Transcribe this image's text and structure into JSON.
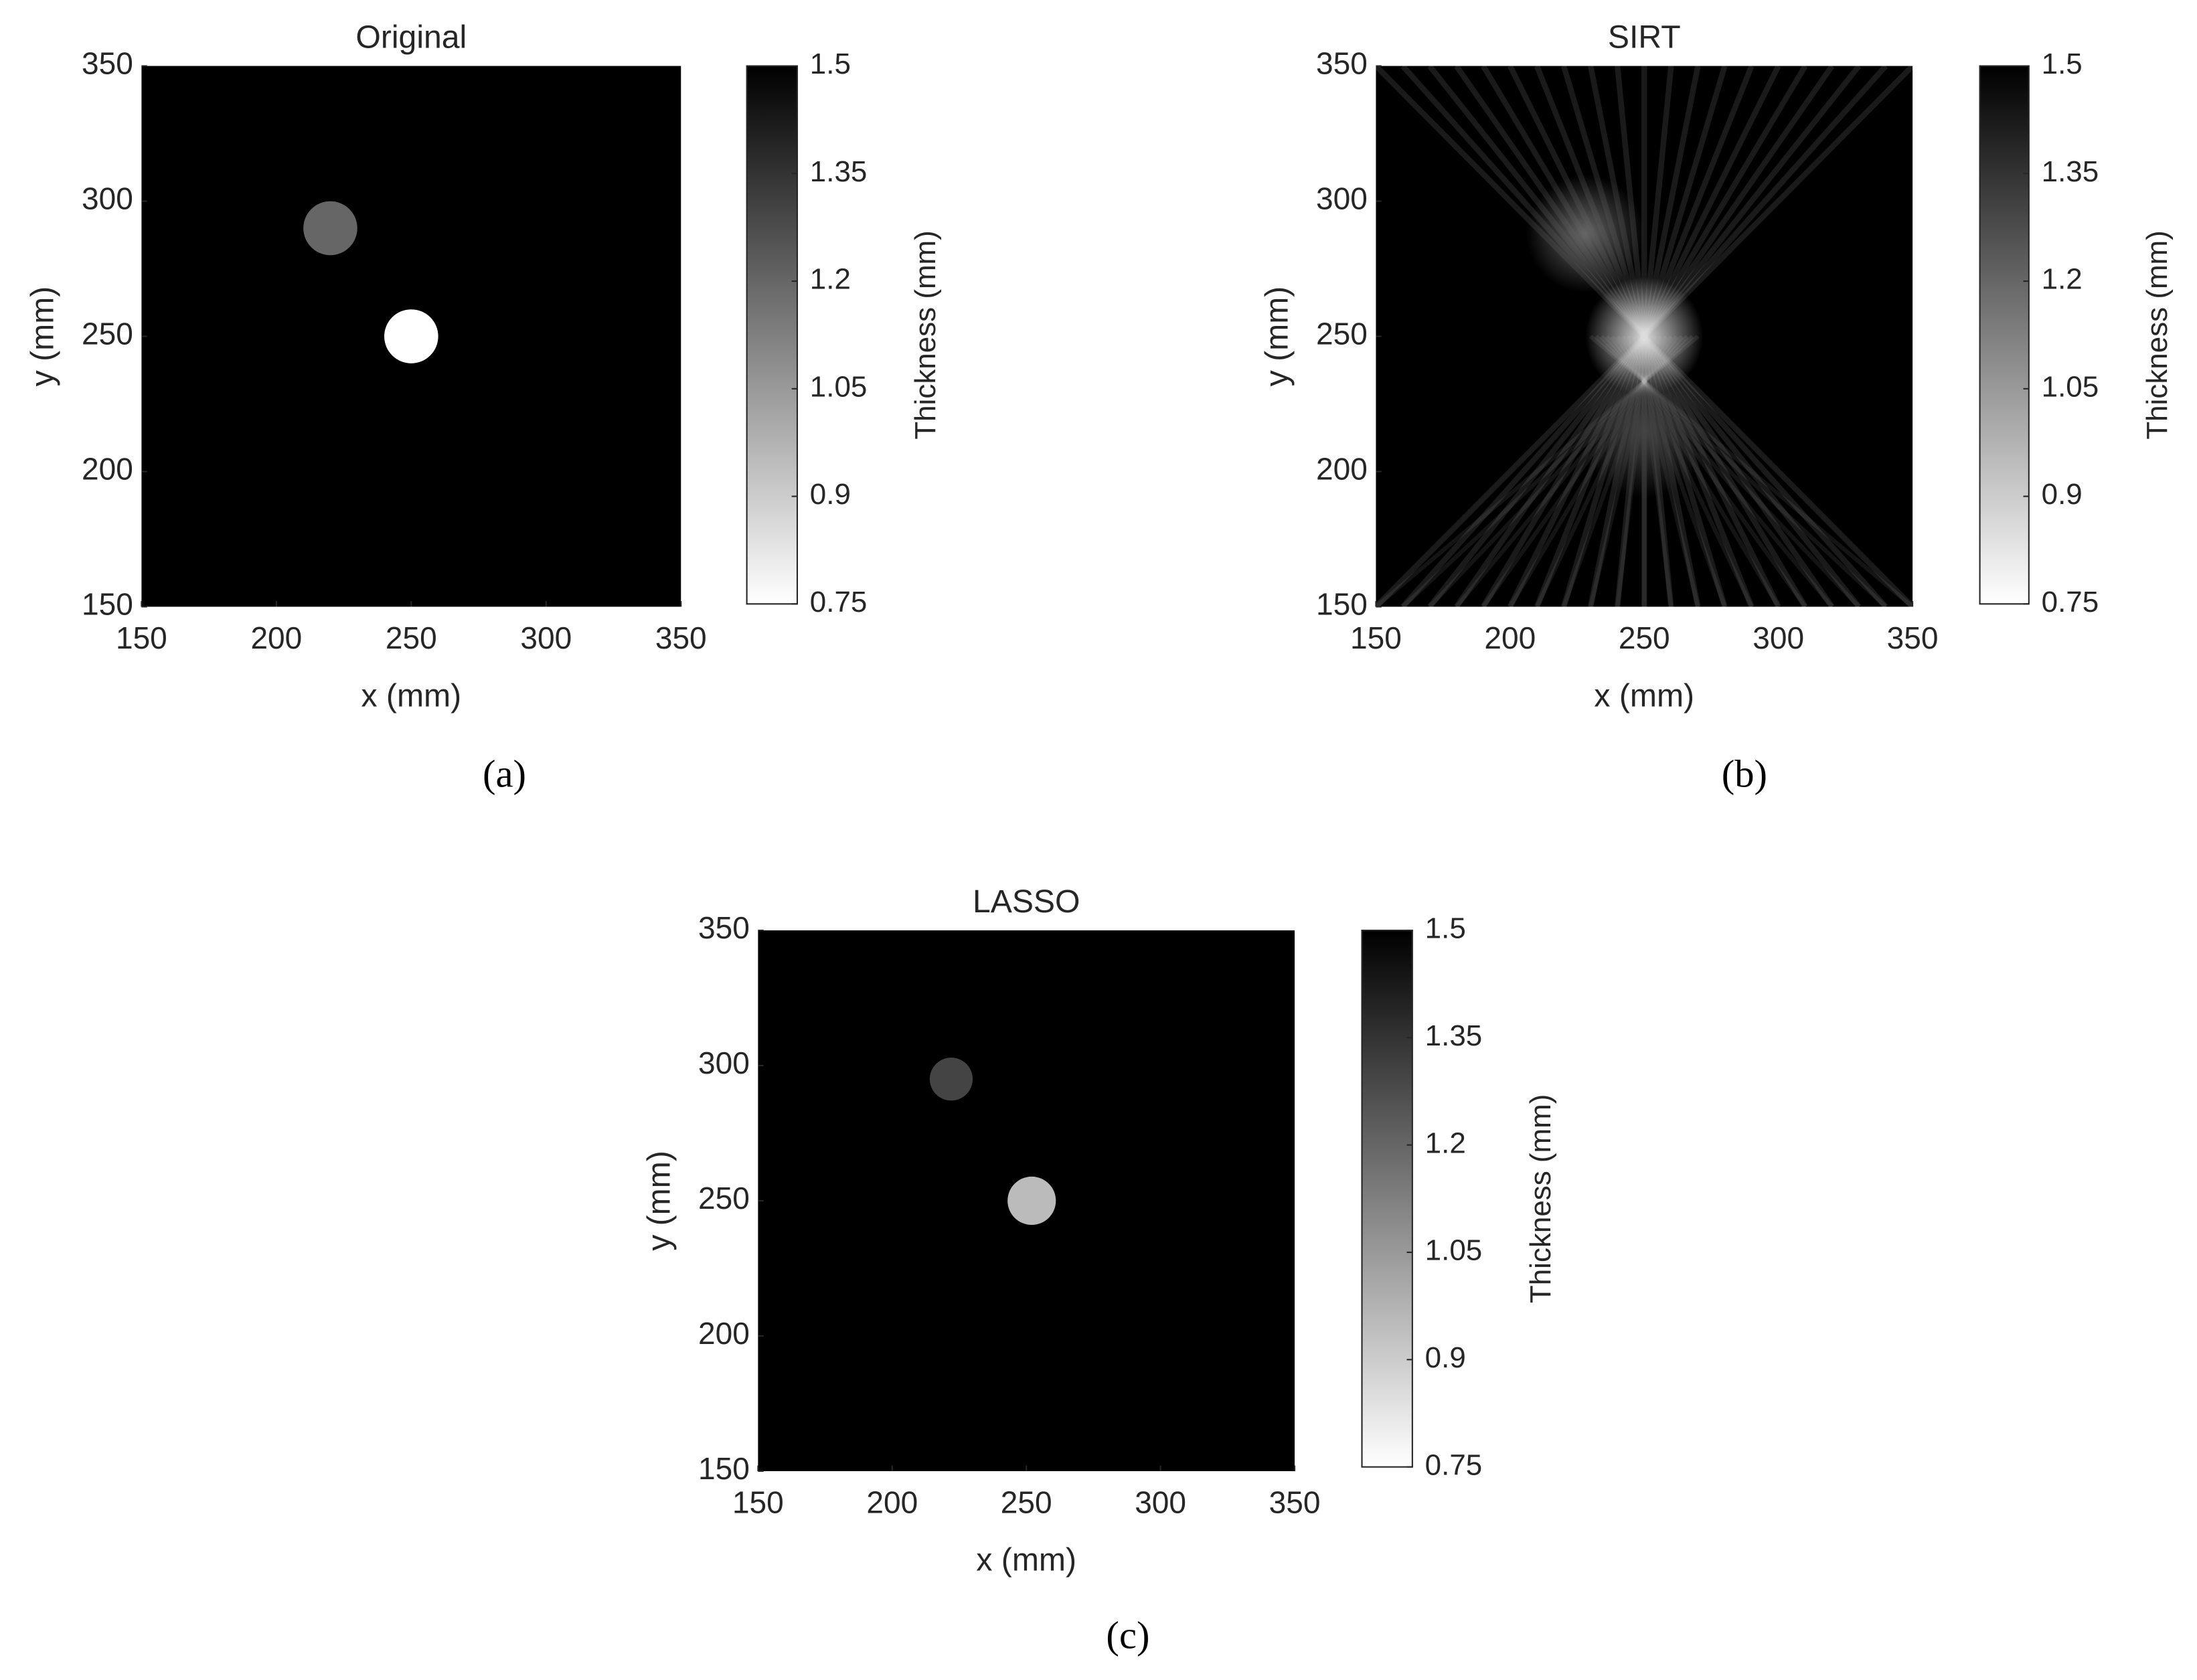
{
  "chart_data": [
    {
      "type": "heatmap",
      "title": "Original",
      "caption": "(a)",
      "xlabel": "x (mm)",
      "ylabel": "y (mm)",
      "xlim": [
        150,
        350
      ],
      "ylim": [
        150,
        350
      ],
      "xticks": [
        150,
        200,
        250,
        300,
        350
      ],
      "yticks": [
        150,
        200,
        250,
        300,
        350
      ],
      "background": 1.5,
      "smooth": false,
      "blobs": [
        {
          "x": 220,
          "y": 290,
          "r": 10,
          "value": 1.2
        },
        {
          "x": 250,
          "y": 250,
          "r": 10,
          "value": 0.75
        }
      ],
      "colorbar": {
        "label": "Thickness (mm)",
        "lim": [
          0.75,
          1.5
        ],
        "ticks": [
          0.75,
          0.9,
          1.05,
          1.2,
          1.35,
          1.5
        ],
        "colors": [
          "#ffffff",
          "#000000"
        ]
      }
    },
    {
      "type": "heatmap",
      "title": "SIRT",
      "caption": "(b)",
      "xlabel": "x (mm)",
      "ylabel": "y (mm)",
      "xlim": [
        150,
        350
      ],
      "ylim": [
        150,
        350
      ],
      "xticks": [
        150,
        200,
        250,
        300,
        350
      ],
      "yticks": [
        150,
        200,
        250,
        300,
        350
      ],
      "background": 1.5,
      "smooth": true,
      "blobs": [
        {
          "x": 250,
          "y": 250,
          "r": 22,
          "value": 0.85
        },
        {
          "x": 228,
          "y": 288,
          "r": 22,
          "value": 1.2
        },
        {
          "x": 250,
          "y": 215,
          "r": 25,
          "value": 1.3
        }
      ],
      "colorbar": {
        "label": "Thickness (mm)",
        "lim": [
          0.75,
          1.5
        ],
        "ticks": [
          0.75,
          0.9,
          1.05,
          1.2,
          1.35,
          1.5
        ],
        "colors": [
          "#ffffff",
          "#000000"
        ]
      }
    },
    {
      "type": "heatmap",
      "title": "LASSO",
      "caption": "(c)",
      "xlabel": "x (mm)",
      "ylabel": "y (mm)",
      "xlim": [
        150,
        350
      ],
      "ylim": [
        150,
        350
      ],
      "xticks": [
        150,
        200,
        250,
        300,
        350
      ],
      "yticks": [
        150,
        200,
        250,
        300,
        350
      ],
      "background": 1.5,
      "smooth": false,
      "blobs": [
        {
          "x": 222,
          "y": 295,
          "r": 8,
          "value": 1.3
        },
        {
          "x": 252,
          "y": 250,
          "r": 9,
          "value": 0.95
        }
      ],
      "colorbar": {
        "label": "Thickness (mm)",
        "lim": [
          0.75,
          1.5
        ],
        "ticks": [
          0.75,
          0.9,
          1.05,
          1.2,
          1.35,
          1.5
        ],
        "colors": [
          "#ffffff",
          "#000000"
        ]
      }
    }
  ]
}
